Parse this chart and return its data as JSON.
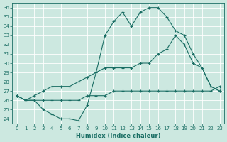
{
  "xlabel": "Humidex (Indice chaleur)",
  "bg_color": "#cce8e0",
  "line_color": "#1a6e64",
  "grid_color": "#ffffff",
  "xlim": [
    -0.5,
    23.5
  ],
  "ylim": [
    23.5,
    36.5
  ],
  "yticks": [
    24,
    25,
    26,
    27,
    28,
    29,
    30,
    31,
    32,
    33,
    34,
    35,
    36
  ],
  "xticks": [
    0,
    1,
    2,
    3,
    4,
    5,
    6,
    7,
    8,
    9,
    10,
    11,
    12,
    13,
    14,
    15,
    16,
    17,
    18,
    19,
    20,
    21,
    22,
    23
  ],
  "xtick_labels": [
    "0",
    "1",
    "2",
    "3",
    "4",
    "5",
    "6",
    "7",
    "8",
    "9",
    "10",
    "11",
    "12",
    "13",
    "14",
    "15",
    "16",
    "17",
    "18",
    "19",
    "20",
    "21",
    "22",
    "23"
  ],
  "line1_x": [
    0,
    1,
    2,
    3,
    4,
    5,
    6,
    7,
    8,
    9,
    10,
    11,
    12,
    13,
    14,
    15,
    16,
    17,
    18,
    19,
    20,
    21,
    22,
    23
  ],
  "line1_y": [
    26.5,
    26.0,
    26.0,
    25.0,
    24.5,
    24.0,
    24.0,
    23.8,
    25.5,
    29.0,
    33.0,
    34.5,
    35.5,
    34.0,
    35.5,
    36.0,
    36.0,
    35.0,
    33.5,
    33.0,
    31.0,
    29.5,
    27.5,
    27.0
  ],
  "line2_x": [
    0,
    1,
    2,
    3,
    4,
    5,
    6,
    7,
    8,
    9,
    10,
    11,
    12,
    13,
    14,
    15,
    16,
    17,
    18,
    19,
    20,
    21,
    22,
    23
  ],
  "line2_y": [
    26.5,
    26.0,
    26.5,
    27.0,
    27.5,
    27.5,
    27.5,
    28.0,
    28.5,
    29.0,
    29.5,
    29.5,
    29.5,
    29.5,
    30.0,
    30.0,
    31.0,
    31.5,
    33.0,
    32.0,
    30.0,
    29.5,
    27.5,
    27.0
  ],
  "line3_x": [
    0,
    1,
    2,
    3,
    4,
    5,
    6,
    7,
    8,
    9,
    10,
    11,
    12,
    13,
    14,
    15,
    16,
    17,
    18,
    19,
    20,
    21,
    22,
    23
  ],
  "line3_y": [
    26.5,
    26.0,
    26.0,
    26.0,
    26.0,
    26.0,
    26.0,
    26.0,
    26.5,
    26.5,
    26.5,
    27.0,
    27.0,
    27.0,
    27.0,
    27.0,
    27.0,
    27.0,
    27.0,
    27.0,
    27.0,
    27.0,
    27.0,
    27.5
  ]
}
